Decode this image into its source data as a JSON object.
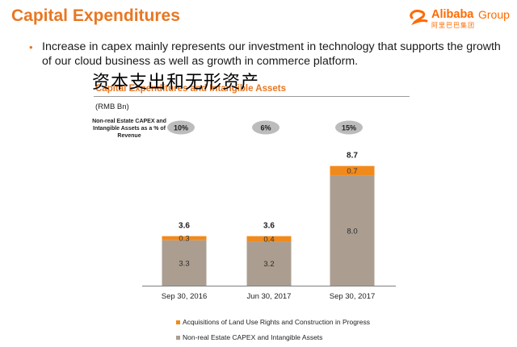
{
  "header": {
    "title": "Capital Expenditures",
    "logo_text": "Alibaba",
    "logo_group": "Group",
    "logo_cn": "阿里巴巴集团"
  },
  "bullet": {
    "marker": "•",
    "text": "Increase in capex mainly represents our investment in technology that supports the growth of our cloud business as well as growth in commerce platform."
  },
  "overlay_cn_title": "资本支出和无形资产",
  "colors": {
    "accent": "#e87722",
    "acquisitions": "#f18a1c",
    "non_real_estate": "#ab9e90",
    "badge": "#bcbcbc",
    "axis": "#7f7f7f"
  },
  "chart_data": {
    "type": "bar",
    "stacked": true,
    "title": "Capital Expenditures and Intangible Assets",
    "units": "(RMB Bn)",
    "side_label": "Non-real Estate CAPEX and Intangible Assets as a % of Revenue",
    "categories": [
      "Sep 30, 2016",
      "Jun 30, 2017",
      "Sep 30, 2017"
    ],
    "series": [
      {
        "name": "Non-real Estate CAPEX and Intangible Assets",
        "values": [
          3.3,
          3.2,
          8.0
        ],
        "labels": [
          "3.3",
          "3.2",
          "8.0"
        ],
        "color": "#ab9e90"
      },
      {
        "name": "Acquisitions of Land Use Rights and Construction in Progress",
        "values": [
          0.3,
          0.4,
          0.7
        ],
        "labels": [
          "0.3",
          "0.4",
          "0.7"
        ],
        "color": "#f18a1c"
      }
    ],
    "totals": [
      "3.6",
      "3.6",
      "8.7"
    ],
    "percent_of_revenue": [
      "10%",
      "6%",
      "15%"
    ],
    "ylim": [
      0,
      9
    ],
    "legend_position": "bottom"
  }
}
